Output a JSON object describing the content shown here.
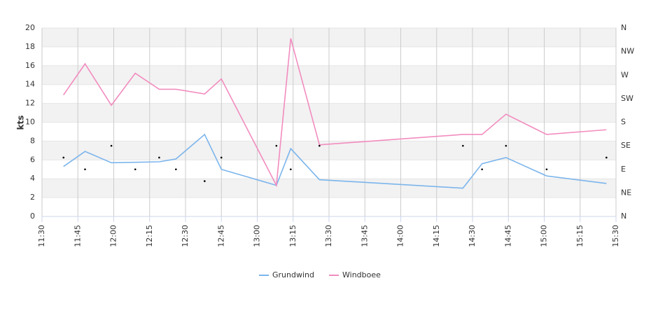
{
  "chart_data": {
    "type": "line",
    "y_label": "kts",
    "x": [
      "11:39",
      "11:48",
      "11:59",
      "12:09",
      "12:19",
      "12:26",
      "12:38",
      "12:45",
      "13:08",
      "13:14",
      "13:26",
      "14:26",
      "14:34",
      "14:44",
      "15:01",
      "15:26"
    ],
    "series": [
      {
        "name": "Grundwind",
        "color": "#7cb5ec",
        "values": [
          5.3,
          6.9,
          5.7,
          5.75,
          5.8,
          6.1,
          8.7,
          5.0,
          3.3,
          7.2,
          3.9,
          3.0,
          5.6,
          6.25,
          4.3,
          3.5
        ]
      },
      {
        "name": "Windboee",
        "color": "#f28cbf",
        "values": [
          12.9,
          16.2,
          11.8,
          15.2,
          13.5,
          13.5,
          13.0,
          14.6,
          3.3,
          18.9,
          7.6,
          8.7,
          8.7,
          10.85,
          8.7,
          9.2
        ]
      }
    ],
    "direction": {
      "axis": "y2",
      "color": "#000000",
      "values": [
        112.5,
        90,
        135,
        90,
        112.5,
        90,
        67.5,
        112.5,
        135,
        90,
        135,
        135,
        90,
        135,
        90,
        112.5
      ]
    },
    "xlim": [
      "11:30",
      "15:30"
    ],
    "xticks": [
      "11:30",
      "11:45",
      "12:00",
      "12:15",
      "12:30",
      "12:45",
      "13:00",
      "13:15",
      "13:30",
      "13:45",
      "14:00",
      "14:15",
      "14:30",
      "14:45",
      "15:00",
      "15:15",
      "15:30"
    ],
    "ylim": [
      0,
      20
    ],
    "yticks": [
      0,
      2,
      4,
      6,
      8,
      10,
      12,
      14,
      16,
      18,
      20
    ],
    "y2lim": [
      0,
      360
    ],
    "y2ticks": [
      {
        "value": 0,
        "label": "N"
      },
      {
        "value": 45,
        "label": "NE"
      },
      {
        "value": 90,
        "label": "E"
      },
      {
        "value": 135,
        "label": "SE"
      },
      {
        "value": 180,
        "label": "S"
      },
      {
        "value": 225,
        "label": "SW"
      },
      {
        "value": 270,
        "label": "W"
      },
      {
        "value": 315,
        "label": "NW"
      },
      {
        "value": 360,
        "label": "N"
      }
    ],
    "grid": true
  }
}
